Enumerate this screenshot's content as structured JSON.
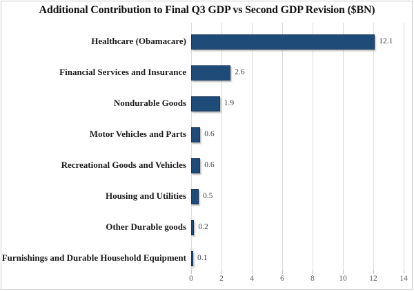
{
  "chart_data": {
    "type": "bar",
    "orientation": "horizontal",
    "title": "Additional Contribution to Final Q3 GDP vs Second GDP Revision ($BN)",
    "categories": [
      "Healthcare (Obamacare)",
      "Financial Services and Insurance",
      "Nondurable Goods",
      "Motor Vehicles and Parts",
      "Recreational Goods and Vehicles",
      "Housing and Utilities",
      "Other Durable goods",
      "Furnishings and Durable Household Equipment"
    ],
    "values": [
      12.1,
      2.6,
      1.9,
      0.6,
      0.6,
      0.5,
      0.2,
      0.1
    ],
    "value_labels": [
      "12.1",
      "2.6",
      "1.9",
      "0.6",
      "0.6",
      "0.5",
      "0.2",
      "0.1"
    ],
    "x_ticks": [
      "0",
      "2",
      "4",
      "6",
      "8",
      "10",
      "12",
      "14"
    ],
    "x_tick_values": [
      0,
      2,
      4,
      6,
      8,
      10,
      12,
      14
    ],
    "xlim": [
      0,
      14
    ],
    "xlabel": "",
    "ylabel": "",
    "grid": "vertical",
    "legend": false,
    "colors": {
      "bar": "#1f4b78",
      "bar_border": "#17375e",
      "bar_shadow": "rgba(90,90,90,0.45)",
      "gridline": "#dcdcdc",
      "tick_mark": "#bfbfbf",
      "tick_label": "#595959",
      "value_label": "#3d3d3d",
      "category_label": "#1a1a1a",
      "title": "#141414",
      "background": "#ffffff",
      "frame_border": "#c9c9c9"
    }
  }
}
